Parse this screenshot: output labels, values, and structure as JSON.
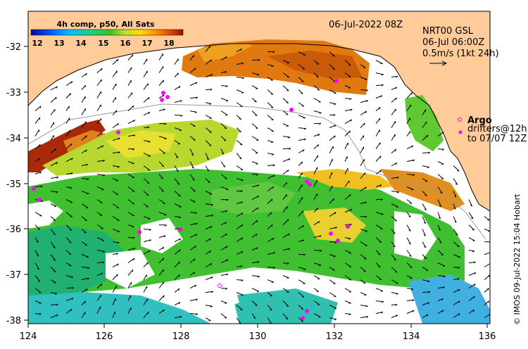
{
  "colorbar": {
    "title": "4h comp, p50, All Sats",
    "ticks": [
      "12",
      "13",
      "14",
      "15",
      "16",
      "17",
      "18"
    ]
  },
  "timestamp": "06-Jul-2022 08Z",
  "gsl": {
    "line1": "NRT00 GSL",
    "line2": "06-Jul 06:00Z",
    "line3": "0.5m/s (1kt 24h)"
  },
  "legend": {
    "argo": "Argo",
    "drifters": "drifters@12h",
    "drifters_to": "to 07/07 12Z"
  },
  "credit": "© IMOS 09-Jul-2022 15:04 Hobart",
  "x_ticks": [
    "124",
    "126",
    "128",
    "130",
    "132",
    "134",
    "136"
  ],
  "y_ticks": [
    "-32",
    "-33",
    "-34",
    "-35",
    "-36",
    "-37",
    "-38"
  ],
  "colors": {
    "land": "#ffcc99",
    "ocean_white": "#ffffff"
  }
}
